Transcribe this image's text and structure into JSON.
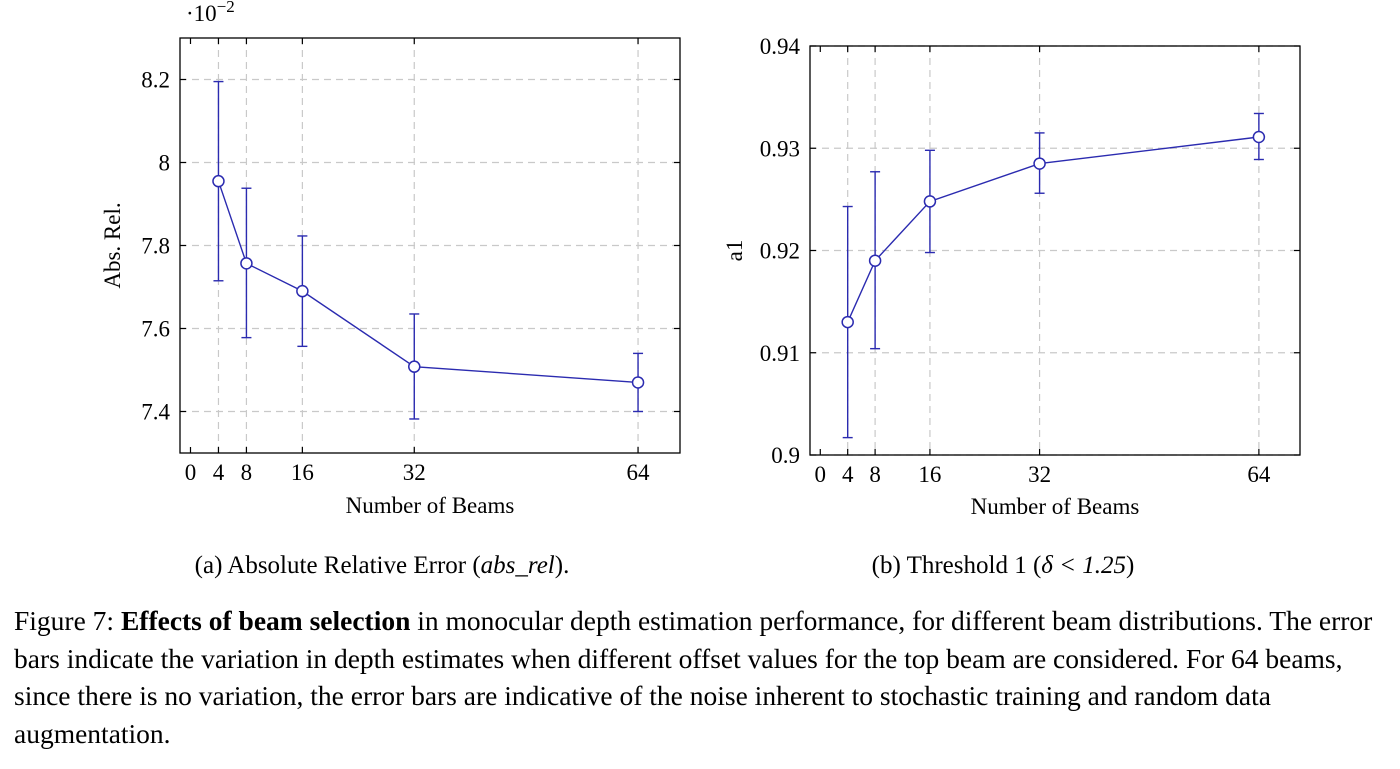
{
  "chart_data": [
    {
      "type": "line",
      "subcaption_prefix": "(a) Absolute Relative Error (",
      "subcaption_math": "abs_rel",
      "subcaption_suffix": ").",
      "xlabel": "Number of Beams",
      "ylabel": "Abs. Rel.",
      "y_multiplier_label": "·10",
      "y_multiplier_exp": "−2",
      "xlim": [
        -1.5,
        70
      ],
      "ylim": [
        7.3,
        8.3
      ],
      "x_ticks": [
        0,
        4,
        8,
        16,
        32,
        64
      ],
      "y_ticks": [
        7.4,
        7.6,
        7.8,
        8.0,
        8.2
      ],
      "y_tick_labels": [
        "7.4",
        "7.6",
        "7.8",
        "8",
        "8.2"
      ],
      "grid": true,
      "series": [
        {
          "x": [
            4,
            8,
            16,
            32,
            64
          ],
          "y": [
            7.955,
            7.757,
            7.69,
            7.508,
            7.47
          ],
          "err_low": [
            7.715,
            7.578,
            7.557,
            7.382,
            7.4
          ],
          "err_high": [
            8.195,
            7.938,
            7.823,
            7.635,
            7.54
          ]
        }
      ]
    },
    {
      "type": "line",
      "subcaption_prefix": "(b) Threshold 1 (",
      "subcaption_math": "δ < 1.25",
      "subcaption_suffix": ")",
      "xlabel": "Number of Beams",
      "ylabel": "a1",
      "xlim": [
        -1.5,
        70
      ],
      "ylim": [
        0.9,
        0.94
      ],
      "x_ticks": [
        0,
        4,
        8,
        16,
        32,
        64
      ],
      "y_ticks": [
        0.9,
        0.91,
        0.92,
        0.93,
        0.94
      ],
      "y_tick_labels": [
        "0.9",
        "0.91",
        "0.92",
        "0.93",
        "0.94"
      ],
      "grid": true,
      "series": [
        {
          "x": [
            4,
            8,
            16,
            32,
            64
          ],
          "y": [
            0.913,
            0.919,
            0.9248,
            0.9285,
            0.9311
          ],
          "err_low": [
            0.9017,
            0.9104,
            0.9198,
            0.9256,
            0.9289
          ],
          "err_high": [
            0.9243,
            0.9277,
            0.9298,
            0.9315,
            0.9334
          ]
        }
      ]
    }
  ],
  "caption": {
    "lead": "Figure 7: ",
    "bold": "Effects of beam selection",
    "body": " in monocular depth estimation performance, for different beam distributions. The error bars indicate the variation in depth estimates when different offset values for the top beam are considered. For 64 beams, since there is no variation, the error bars are indicative of the noise inherent to stochastic training and random data augmentation."
  }
}
